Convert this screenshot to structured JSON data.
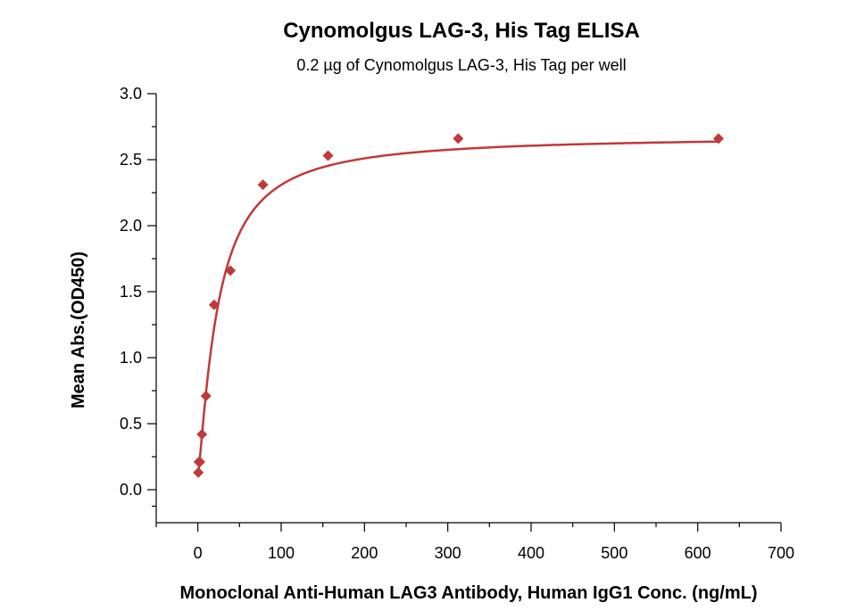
{
  "chart_data": {
    "type": "scatter",
    "title": "Cynomolgus LAG-3, His Tag ELISA",
    "subtitle": "0.2 µg of Cynomolgus LAG-3, His Tag per well",
    "xlabel": "Monoclonal Anti-Human LAG3 Antibody, Human IgG1 Conc. (ng/mL)",
    "ylabel": "Mean Abs.(OD450)",
    "xlim": [
      -50,
      700
    ],
    "ylim": [
      -0.25,
      3.0
    ],
    "x_ticks": [
      0,
      100,
      200,
      300,
      400,
      500,
      600,
      700
    ],
    "y_ticks": [
      0.0,
      0.5,
      1.0,
      1.5,
      2.0,
      2.5,
      3.0
    ],
    "x_tick_labels": [
      "0",
      "100",
      "200",
      "300",
      "400",
      "500",
      "600",
      "700"
    ],
    "y_tick_labels": [
      "0.0",
      "0.5",
      "1.0",
      "1.5",
      "2.0",
      "2.5",
      "3.0"
    ],
    "grid": false,
    "series": [
      {
        "marker": "diamond",
        "color": "#c0393b",
        "x": [
          0.61,
          1.22,
          2.44,
          4.88,
          9.77,
          19.53,
          39.06,
          78.13,
          156.25,
          312.5,
          625
        ],
        "y": [
          0.13,
          0.21,
          0.21,
          0.42,
          0.71,
          1.4,
          1.66,
          2.31,
          2.53,
          2.66,
          2.66
        ]
      }
    ],
    "fit_curve": {
      "model": "4PL",
      "bottom": 0.1,
      "top": 2.68,
      "ec50": 24,
      "hill": 1.25,
      "color": "#c0393b"
    }
  }
}
